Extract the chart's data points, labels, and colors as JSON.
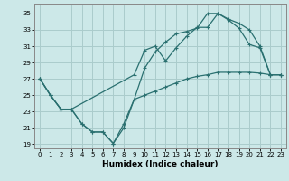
{
  "xlabel": "Humidex (Indice chaleur)",
  "bg_color": "#cce8e8",
  "grid_color": "#aacccc",
  "line_color": "#2a7070",
  "xlim": [
    -0.5,
    23.5
  ],
  "ylim": [
    18.5,
    36.2
  ],
  "yticks": [
    19,
    21,
    23,
    25,
    27,
    29,
    31,
    33,
    35
  ],
  "xticks": [
    0,
    1,
    2,
    3,
    4,
    5,
    6,
    7,
    8,
    9,
    10,
    11,
    12,
    13,
    14,
    15,
    16,
    17,
    18,
    19,
    20,
    21,
    22,
    23
  ],
  "curve1_x": [
    0,
    1,
    2,
    3,
    4,
    5,
    6,
    7,
    8,
    9,
    10,
    11,
    12,
    13,
    14,
    15,
    16,
    17,
    18,
    19,
    20,
    21,
    22,
    23
  ],
  "curve1_y": [
    27,
    25,
    23.3,
    23.3,
    21.5,
    20.5,
    20.5,
    19.1,
    21.5,
    24.5,
    28.3,
    30.3,
    31.5,
    32.5,
    32.8,
    33.2,
    35.0,
    35.0,
    34.2,
    33.2,
    31.2,
    30.8,
    27.5,
    27.5
  ],
  "curve2_x": [
    0,
    1,
    2,
    3,
    9,
    10,
    11,
    12,
    13,
    14,
    15,
    16,
    17,
    18,
    19,
    20,
    21,
    22,
    23
  ],
  "curve2_y": [
    27,
    25,
    23.3,
    23.3,
    27.5,
    30.5,
    31.0,
    29.2,
    30.8,
    32.2,
    33.3,
    33.3,
    35.0,
    34.3,
    33.8,
    33.0,
    31.0,
    27.5,
    27.5
  ],
  "curve3_x": [
    0,
    1,
    2,
    3,
    4,
    5,
    6,
    7,
    8,
    9,
    10,
    11,
    12,
    13,
    14,
    15,
    16,
    17,
    18,
    19,
    20,
    21,
    22,
    23
  ],
  "curve3_y": [
    27,
    25,
    23.3,
    23.3,
    21.5,
    20.5,
    20.5,
    19.1,
    21.0,
    24.5,
    25.0,
    25.5,
    26.0,
    26.5,
    27.0,
    27.3,
    27.5,
    27.8,
    27.8,
    27.8,
    27.8,
    27.7,
    27.5,
    27.5
  ]
}
